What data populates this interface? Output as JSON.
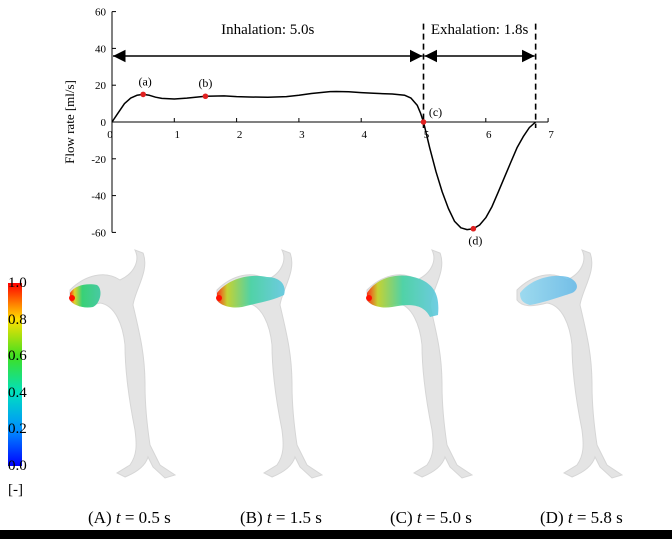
{
  "chart_data": {
    "type": "line",
    "ylabel": "Flow rate [ml/s]",
    "xlim": [
      0,
      7
    ],
    "ylim": [
      -60,
      60
    ],
    "x_ticks": [
      "1",
      "2",
      "3",
      "4",
      "5",
      "6",
      "7"
    ],
    "y_ticks": [
      "60",
      "40",
      "20",
      "0",
      "-20",
      "-40",
      "-60"
    ],
    "zero_label": "0",
    "series": [
      {
        "x": [
          0,
          0.1,
          0.2,
          0.3,
          0.4,
          0.5,
          0.6,
          0.7,
          0.8,
          1.0,
          1.2,
          1.5,
          1.8,
          2.0,
          2.2,
          2.5,
          2.8,
          3.0,
          3.2,
          3.5,
          3.6,
          3.8,
          4.0,
          4.2,
          4.5,
          4.7,
          4.8,
          4.9,
          4.95,
          5.0,
          5.1,
          5.2,
          5.3,
          5.4,
          5.5,
          5.6,
          5.7,
          5.8,
          5.9,
          6.0,
          6.1,
          6.2,
          6.3,
          6.4,
          6.5,
          6.6,
          6.7,
          6.8
        ],
        "y": [
          0,
          5,
          10,
          13,
          14.5,
          15,
          14.5,
          13.5,
          12.8,
          12.5,
          13.0,
          14.0,
          14.2,
          13.8,
          13.6,
          13.5,
          13.8,
          14.5,
          15.5,
          16.5,
          16.6,
          16.4,
          16.0,
          15.6,
          15.2,
          14.5,
          13.0,
          9.0,
          5.0,
          0,
          -14,
          -27,
          -38,
          -47,
          -54,
          -57.5,
          -58.5,
          -58,
          -56,
          -52,
          -46,
          -38,
          -30,
          -22,
          -14,
          -8,
          -3,
          0
        ]
      }
    ],
    "phases": [
      {
        "label": "Inhalation: 5.0s",
        "start": 0,
        "end": 5.0
      },
      {
        "label": "Exhalation: 1.8s",
        "start": 5.0,
        "end": 6.8
      }
    ],
    "points": [
      {
        "label": "(a)",
        "x": 0.5,
        "y": 15
      },
      {
        "label": "(b)",
        "x": 1.5,
        "y": 14
      },
      {
        "label": "(c)",
        "x": 5.0,
        "y": 0
      },
      {
        "label": "(d)",
        "x": 5.8,
        "y": -58
      }
    ]
  },
  "colorbar": {
    "labels": [
      "1.0",
      "0.8",
      "0.6",
      "0.4",
      "0.2",
      "0.0"
    ],
    "unit": "[-]"
  },
  "panels": [
    {
      "letter": "(A)",
      "var": "t",
      "rest": " = 0.5 s"
    },
    {
      "letter": "(B)",
      "var": "t",
      "rest": " = 1.5 s"
    },
    {
      "letter": "(C)",
      "var": "t",
      "rest": " = 5.0 s"
    },
    {
      "letter": "(D)",
      "var": "t",
      "rest": " = 5.8 s"
    }
  ]
}
